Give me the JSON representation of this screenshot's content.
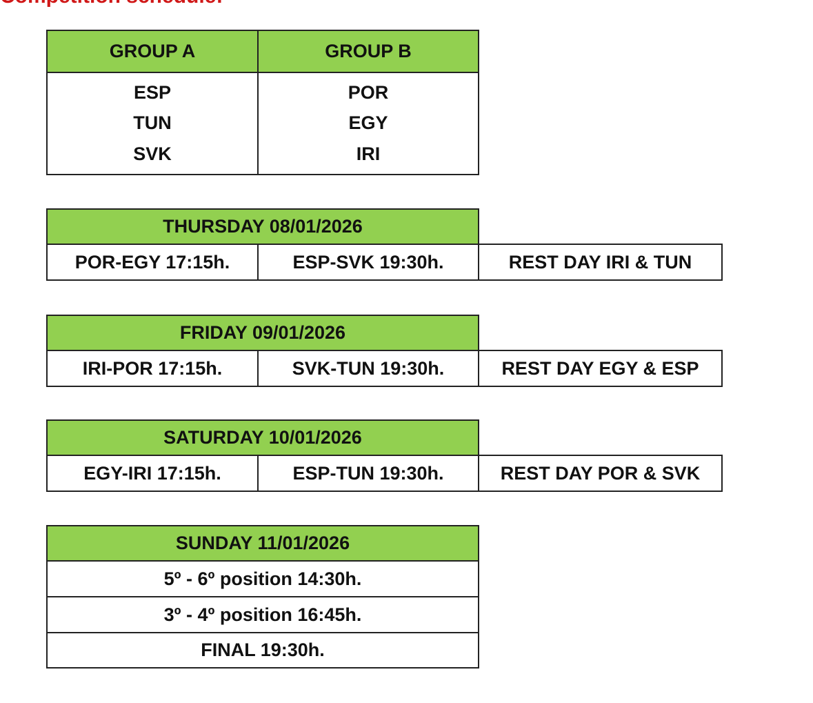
{
  "title": "Competition schedule:",
  "groups": {
    "a": {
      "label": "GROUP A",
      "teams": [
        "ESP",
        "TUN",
        "SVK"
      ]
    },
    "b": {
      "label": "GROUP B",
      "teams": [
        "POR",
        "EGY",
        "IRI"
      ]
    }
  },
  "days": [
    {
      "date": "THURSDAY 08/01/2026",
      "match1": "POR-EGY 17:15h.",
      "match2": "ESP-SVK 19:30h.",
      "rest": "REST DAY IRI & TUN"
    },
    {
      "date": "FRIDAY 09/01/2026",
      "match1": "IRI-POR 17:15h.",
      "match2": "SVK-TUN 19:30h.",
      "rest": "REST DAY EGY & ESP"
    },
    {
      "date": "SATURDAY 10/01/2026",
      "match1": "EGY-IRI 17:15h.",
      "match2": "ESP-TUN 19:30h.",
      "rest": "REST DAY POR & SVK"
    }
  ],
  "sunday": {
    "date": "SUNDAY 11/01/2026",
    "games": [
      "5º - 6º position 14:30h.",
      "3º - 4º position 16:45h.",
      "FINAL 19:30h."
    ]
  },
  "colors": {
    "header": "#92d050",
    "title": "#d01818"
  }
}
